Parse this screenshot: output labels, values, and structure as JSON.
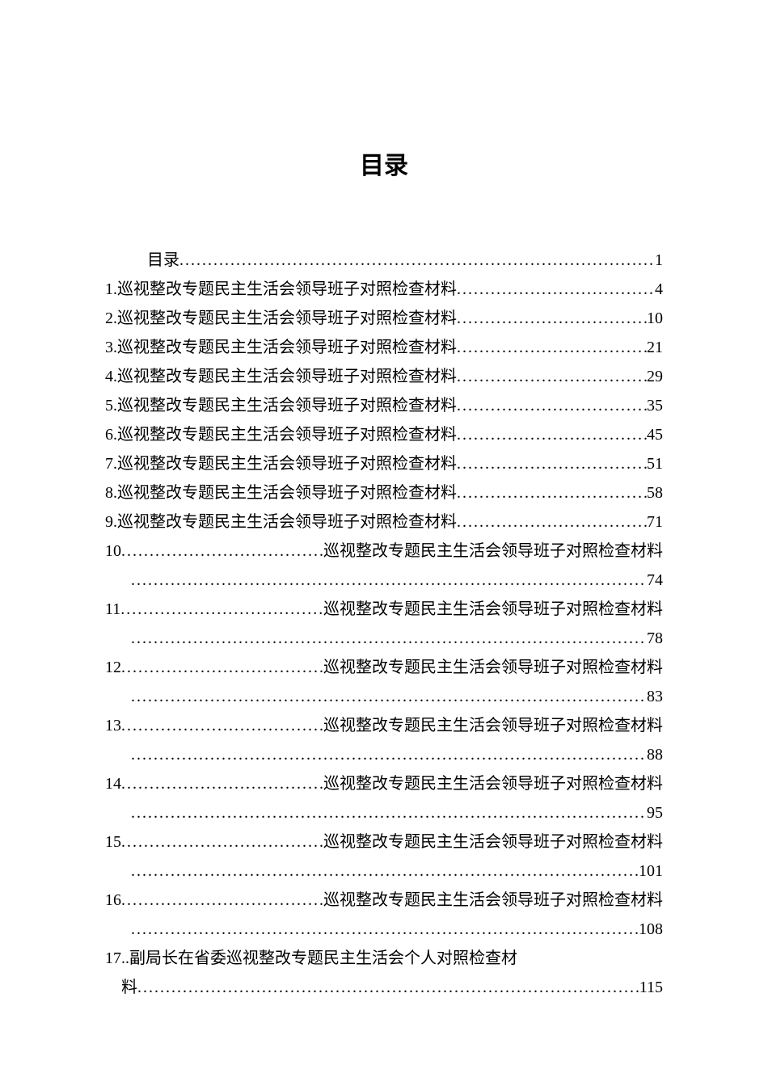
{
  "title": "目录",
  "toc_first": {
    "label": "目录",
    "page": "1"
  },
  "simple_entries": [
    {
      "num": "1. ",
      "title": "巡视整改专题民主生活会领导班子对照检查材料",
      "page": "4"
    },
    {
      "num": "2. ",
      "title": "巡视整改专题民主生活会领导班子对照检查材料",
      "page": "10"
    },
    {
      "num": "3. ",
      "title": "巡视整改专题民主生活会领导班子对照检查材料",
      "page": "21"
    },
    {
      "num": "4. ",
      "title": "巡视整改专题民主生活会领导班子对照检查材料",
      "page": "29"
    },
    {
      "num": "5. ",
      "title": "巡视整改专题民主生活会领导班子对照检查材料",
      "page": "35"
    },
    {
      "num": "6. ",
      "title": "巡视整改专题民主生活会领导班子对照检查材料",
      "page": "45"
    },
    {
      "num": "7. ",
      "title": "巡视整改专题民主生活会领导班子对照检查材料",
      "page": "51"
    },
    {
      "num": "8. ",
      "title": "巡视整改专题民主生活会领导班子对照检查材料",
      "page": "58"
    },
    {
      "num": "9. ",
      "title": "巡视整改专题民主生活会领导班子对照检查材料",
      "page": "71"
    }
  ],
  "multi_entries": [
    {
      "num": "10",
      "title": "巡视整改专题民主生活会领导班子对照检查材料",
      "page": "74"
    },
    {
      "num": "11",
      "title": "巡视整改专题民主生活会领导班子对照检查材料",
      "page": "78"
    },
    {
      "num": "12",
      "title": "巡视整改专题民主生活会领导班子对照检查材料",
      "page": "83"
    },
    {
      "num": "13",
      "title": "巡视整改专题民主生活会领导班子对照检查材料",
      "page": "88"
    },
    {
      "num": "14",
      "title": "巡视整改专题民主生活会领导班子对照检查材料",
      "page": "95"
    },
    {
      "num": "15",
      "title": "巡视整改专题民主生活会领导班子对照检查材料",
      "page": "101"
    },
    {
      "num": "16",
      "title": "巡视整改专题民主生活会领导班子对照检查材料",
      "page": "108"
    }
  ],
  "entry_17": {
    "num": "17..",
    "title_line1": "副局长在省委巡视整改专题民主生活会个人对照检查材",
    "title_line2": "料",
    "page": "115"
  },
  "colors": {
    "background": "#ffffff",
    "text": "#000000"
  },
  "typography": {
    "title_fontsize": 30,
    "body_fontsize": 20,
    "title_font": "SimHei",
    "body_font": "SimSun",
    "line_height": 1.8
  }
}
